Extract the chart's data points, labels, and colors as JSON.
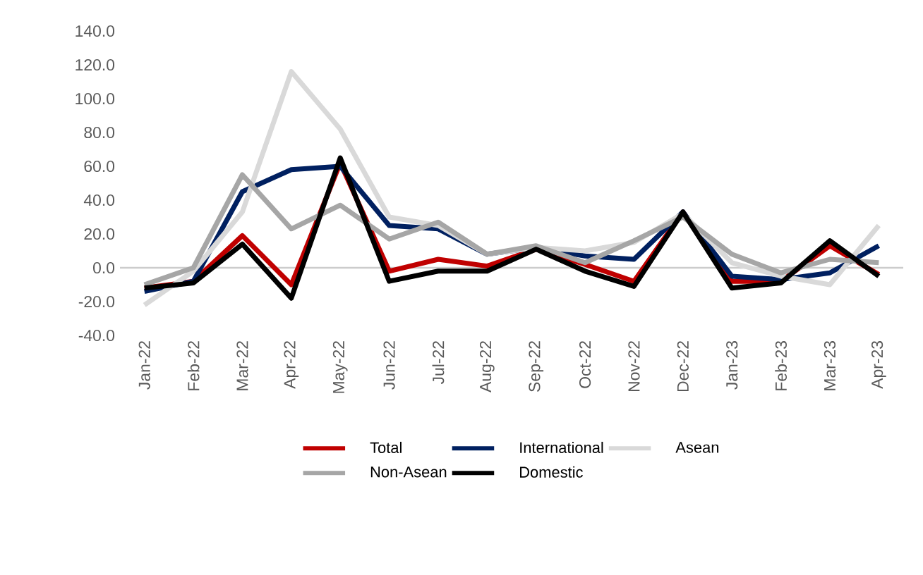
{
  "chart_data": {
    "type": "line",
    "categories": [
      "Jan-22",
      "Feb-22",
      "Mar-22",
      "Apr-22",
      "May-22",
      "Jun-22",
      "Jul-22",
      "Aug-22",
      "Sep-22",
      "Oct-22",
      "Nov-22",
      "Dec-22",
      "Jan-23",
      "Feb-23",
      "Mar-23",
      "Apr-23"
    ],
    "series": [
      {
        "name": "Total",
        "color": "#c00000",
        "values": [
          -12,
          -8,
          19,
          -10,
          62,
          -2,
          5,
          1,
          11,
          2,
          -8,
          33,
          -8,
          -8,
          13,
          -4
        ]
      },
      {
        "name": "International",
        "color": "#002060",
        "values": [
          -14,
          -8,
          45,
          58,
          60,
          25,
          23,
          8,
          12,
          7,
          5,
          33,
          -5,
          -7,
          -3,
          13
        ]
      },
      {
        "name": "Asean",
        "color": "#d9d9d9",
        "values": [
          -22,
          -2,
          33,
          116,
          82,
          30,
          25,
          8,
          12,
          10,
          15,
          32,
          3,
          -5,
          -10,
          25
        ]
      },
      {
        "name": "Non-Asean",
        "color": "#a6a6a6",
        "values": [
          -10,
          0,
          55,
          23,
          37,
          17,
          27,
          8,
          13,
          3,
          16,
          30,
          8,
          -3,
          5,
          3
        ]
      },
      {
        "name": "Domestic",
        "color": "#000000",
        "values": [
          -12,
          -9,
          14,
          -18,
          65,
          -8,
          -2,
          -2,
          11,
          -2,
          -11,
          33,
          -12,
          -9,
          16,
          -5
        ]
      }
    ],
    "ylim": [
      -40,
      140
    ],
    "yticks": [
      {
        "value": -40,
        "label": "-40.0"
      },
      {
        "value": -20,
        "label": "-20.0"
      },
      {
        "value": 0,
        "label": "0.0"
      },
      {
        "value": 20,
        "label": "20.0"
      },
      {
        "value": 40,
        "label": "40.0"
      },
      {
        "value": 60,
        "label": "60.0"
      },
      {
        "value": 80,
        "label": "80.0"
      },
      {
        "value": 100,
        "label": "100.0"
      },
      {
        "value": 120,
        "label": "120.0"
      },
      {
        "value": 140,
        "label": "140.0"
      }
    ],
    "legend": "bottom",
    "marker": "none",
    "line_style": "solid"
  }
}
